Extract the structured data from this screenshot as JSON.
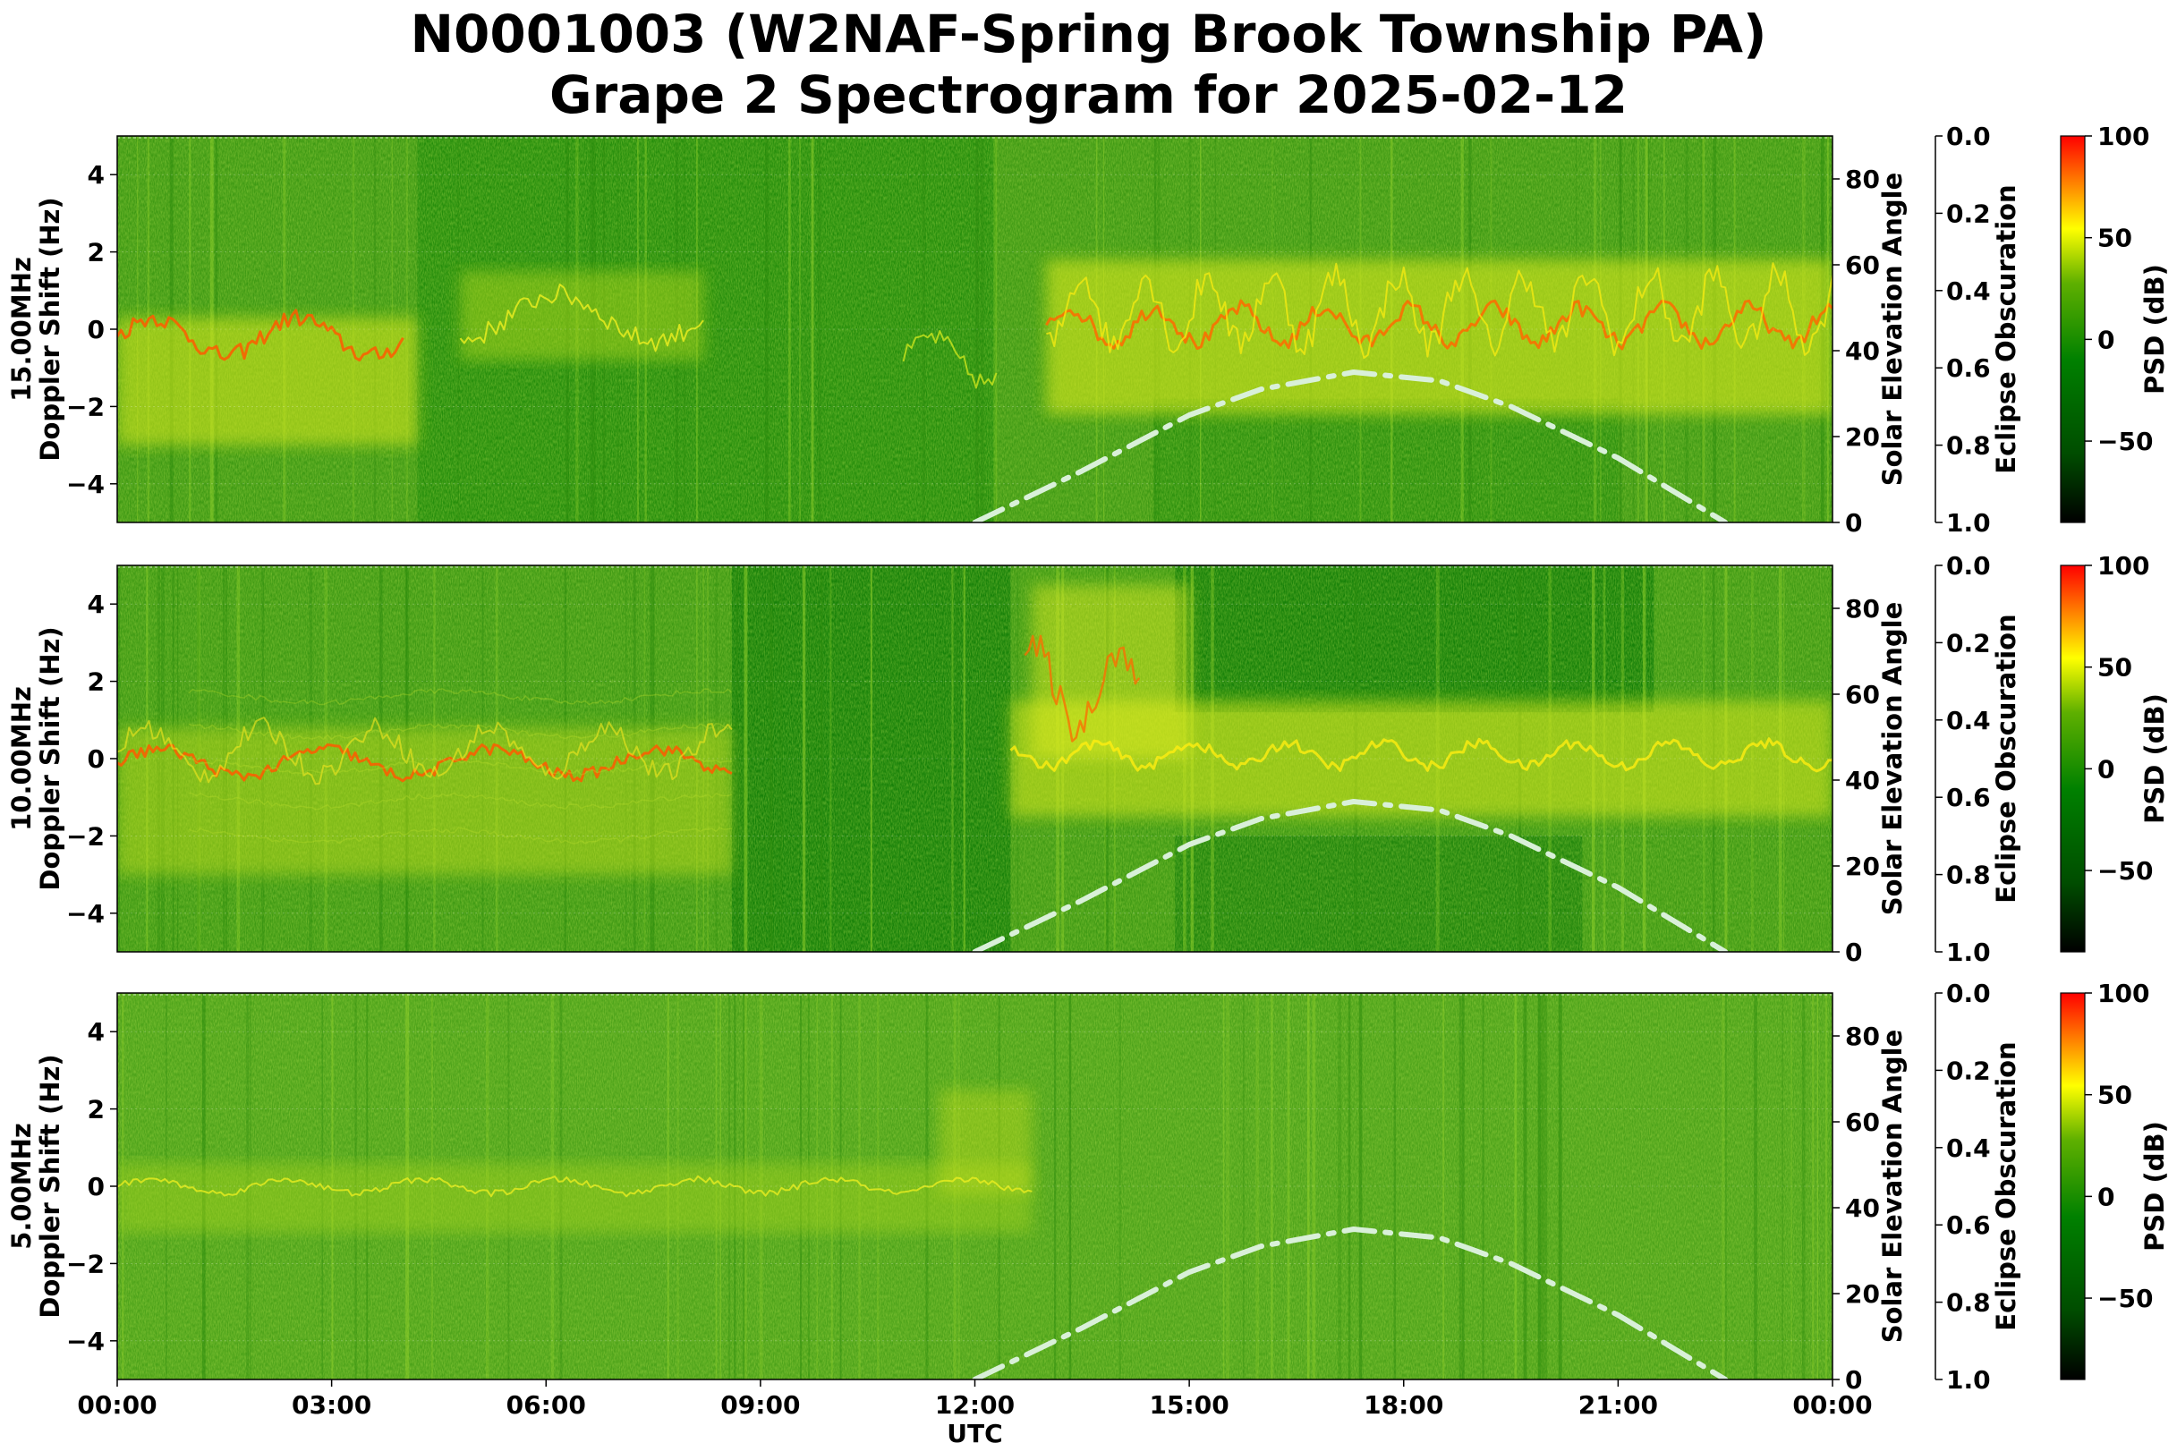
{
  "title_line1": "N0001003 (W2NAF-Spring Brook Township PA)",
  "title_line2": "Grape 2 Spectrogram for 2025-02-12",
  "colors": {
    "colormap": [
      "#000000",
      "#004d00",
      "#008000",
      "#5fb000",
      "#ffff00",
      "#ff8000",
      "#ff0000"
    ],
    "solar_curve": "#d9f0d9"
  },
  "chart_data": [
    {
      "type": "heatmap",
      "panel_label": "15.00MHz",
      "ylabel": "Doppler Shift (Hz)",
      "ylabel_right": "Solar Elevation Angle",
      "ylabel_right2": "Eclipse Obscuration",
      "colorbar_label": "PSD (dB)",
      "ylim": [
        -5,
        5
      ],
      "yticks": [
        "4",
        "2",
        "0",
        "−2",
        "−4"
      ],
      "solar_ylim": [
        0,
        90
      ],
      "solar_ticks": [
        "80",
        "60",
        "40",
        "20",
        "0"
      ],
      "eclipse_ylim": [
        0.0,
        1.0
      ],
      "eclipse_ticks": [
        "0.0",
        "0.2",
        "0.4",
        "0.6",
        "0.8",
        "1.0"
      ],
      "cbar_ticks": [
        "100",
        "50",
        "0",
        "−50"
      ],
      "cbar_range": [
        -90,
        100
      ],
      "solar_elevation_curve": {
        "x_hours": [
          12.0,
          13.5,
          15.0,
          16.0,
          17.3,
          18.5,
          19.5,
          21.0,
          22.5
        ],
        "deg": [
          0,
          12,
          25,
          31,
          35,
          33,
          27,
          15,
          0
        ]
      }
    },
    {
      "type": "heatmap",
      "panel_label": "10.00MHz",
      "ylabel": "Doppler Shift (Hz)",
      "ylabel_right": "Solar Elevation Angle",
      "ylabel_right2": "Eclipse Obscuration",
      "colorbar_label": "PSD (dB)",
      "ylim": [
        -5,
        5
      ],
      "yticks": [
        "4",
        "2",
        "0",
        "−2",
        "−4"
      ],
      "solar_ylim": [
        0,
        90
      ],
      "solar_ticks": [
        "80",
        "60",
        "40",
        "20",
        "0"
      ],
      "eclipse_ylim": [
        0.0,
        1.0
      ],
      "eclipse_ticks": [
        "0.0",
        "0.2",
        "0.4",
        "0.6",
        "0.8",
        "1.0"
      ],
      "cbar_ticks": [
        "100",
        "50",
        "0",
        "−50"
      ],
      "cbar_range": [
        -90,
        100
      ],
      "solar_elevation_curve": {
        "x_hours": [
          12.0,
          13.5,
          15.0,
          16.0,
          17.3,
          18.5,
          19.5,
          21.0,
          22.5
        ],
        "deg": [
          0,
          12,
          25,
          31,
          35,
          33,
          27,
          15,
          0
        ]
      }
    },
    {
      "type": "heatmap",
      "panel_label": "5.00MHz",
      "ylabel": "Doppler Shift (Hz)",
      "ylabel_right": "Solar Elevation Angle",
      "ylabel_right2": "Eclipse Obscuration",
      "colorbar_label": "PSD (dB)",
      "ylim": [
        -5,
        5
      ],
      "yticks": [
        "4",
        "2",
        "0",
        "−2",
        "−4"
      ],
      "solar_ylim": [
        0,
        90
      ],
      "solar_ticks": [
        "80",
        "60",
        "40",
        "20",
        "0"
      ],
      "eclipse_ylim": [
        0.0,
        1.0
      ],
      "eclipse_ticks": [
        "0.0",
        "0.2",
        "0.4",
        "0.6",
        "0.8",
        "1.0"
      ],
      "cbar_ticks": [
        "100",
        "50",
        "0",
        "−50"
      ],
      "cbar_range": [
        -90,
        100
      ],
      "solar_elevation_curve": {
        "x_hours": [
          12.0,
          13.5,
          15.0,
          16.0,
          17.3,
          18.5,
          19.5,
          21.0,
          22.5
        ],
        "deg": [
          0,
          12,
          25,
          31,
          35,
          33,
          27,
          15,
          0
        ]
      },
      "xlabel": "UTC",
      "xticks": [
        "00:00",
        "03:00",
        "06:00",
        "09:00",
        "12:00",
        "15:00",
        "18:00",
        "21:00",
        "00:00"
      ]
    }
  ]
}
